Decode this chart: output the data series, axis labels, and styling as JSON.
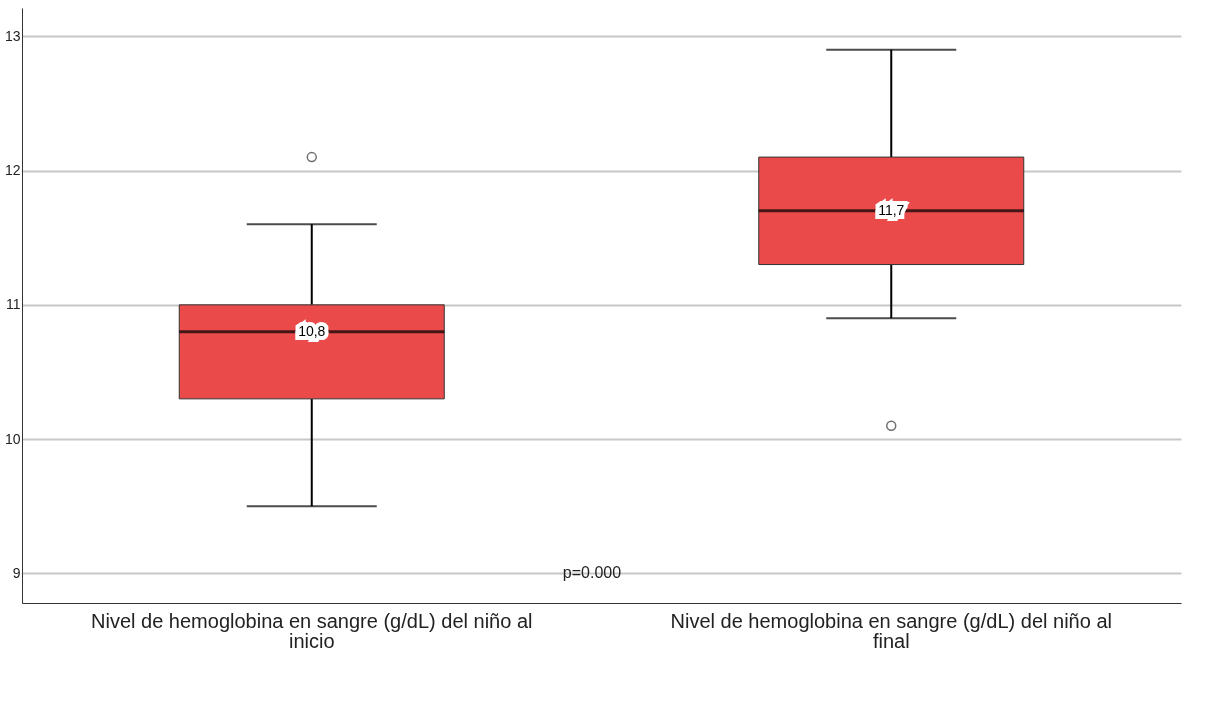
{
  "chart_data": {
    "type": "box",
    "categories": [
      "Nivel de hemoglobina en sangre (g/dL) del niño al inicio",
      "Nivel de hemoglobina en sangre (g/dL) del niño al final"
    ],
    "boxes": [
      {
        "low": 9.5,
        "q1": 10.3,
        "median": 10.8,
        "q3": 11.0,
        "high": 11.6,
        "outliers": [
          12.1
        ]
      },
      {
        "low": 10.9,
        "q1": 11.3,
        "median": 11.7,
        "q3": 12.1,
        "high": 12.9,
        "outliers": [
          10.1
        ]
      }
    ],
    "color": "#eb4a4b",
    "value_labels": [
      "10,8",
      "11,7"
    ],
    "ylim": [
      8.78,
      13.21
    ],
    "yticks": [
      9,
      10,
      11,
      12,
      13
    ],
    "grid": "y",
    "annotations": [
      "p=0.000"
    ]
  }
}
